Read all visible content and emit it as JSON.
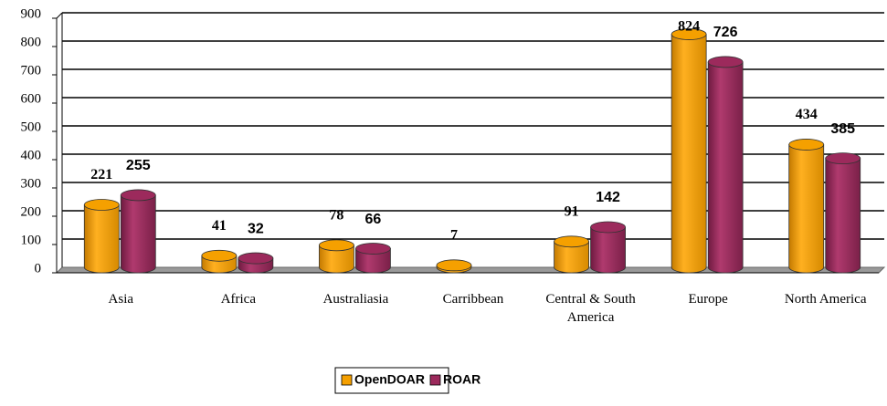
{
  "chart_data": {
    "type": "bar",
    "categories": [
      "Asia",
      "Africa",
      "Australiasia",
      "Carribbean",
      "Central & South America",
      "Europe",
      "North America"
    ],
    "series": [
      {
        "name": "OpenDOAR",
        "color": "#f5a000",
        "values": [
          221,
          41,
          78,
          7,
          91,
          824,
          434
        ]
      },
      {
        "name": "ROAR",
        "color": "#9c2a5c",
        "values": [
          255,
          32,
          66,
          null,
          142,
          726,
          385
        ]
      }
    ],
    "ylim": [
      0,
      900
    ],
    "yticks": [
      0,
      100,
      200,
      300,
      400,
      500,
      600,
      700,
      800,
      900
    ],
    "grid": true,
    "legend": "bottom"
  }
}
